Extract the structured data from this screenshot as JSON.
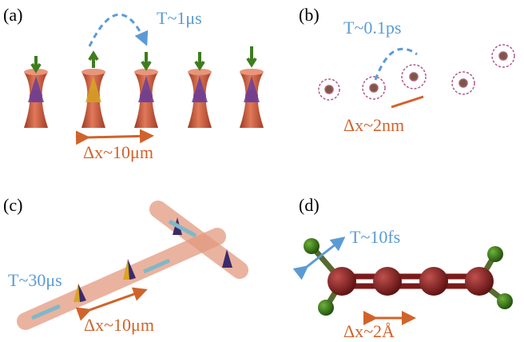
{
  "panels": [
    {
      "label": "(a)",
      "time": "T~1μs",
      "distance": "Δx~10μm"
    },
    {
      "label": "(b)",
      "time": "T~0.1ps",
      "distance": "Δx~2nm"
    },
    {
      "label": "(c)",
      "time": "T~30μs",
      "distance": "Δx~10μm"
    },
    {
      "label": "(d)",
      "time": "T~10fs",
      "distance": "Δx~2Å"
    }
  ]
}
